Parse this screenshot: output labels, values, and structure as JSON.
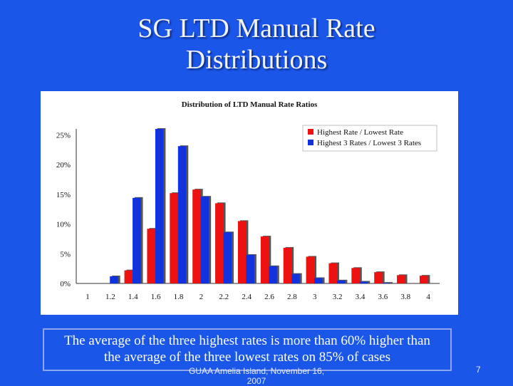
{
  "slide": {
    "title_line1": "SG LTD Manual Rate",
    "title_line2": "Distributions",
    "caption_line1": "The average of the three highest rates is more than 60% higher than",
    "caption_line2": "the average of the three lowest rates on 85% of cases",
    "footer": "GUAA Amelia Island, November 16, 2007",
    "page_number": "7"
  },
  "colors": {
    "background": "#1a56e8",
    "series_red": "#ee1111",
    "series_blue": "#1133dd"
  },
  "chart_data": {
    "type": "bar",
    "title": "Distribution of LTD Manual Rate Ratios",
    "categories": [
      "1",
      "1.2",
      "1.4",
      "1.6",
      "1.8",
      "2",
      "2.2",
      "2.4",
      "2.6",
      "2.8",
      "3",
      "3.2",
      "3.4",
      "3.6",
      "3.8",
      "4"
    ],
    "series": [
      {
        "name": "Highest Rate / Lowest Rate",
        "color": "#ee1111",
        "values": [
          0,
          0,
          2.2,
          9.2,
          15.2,
          15.8,
          13.5,
          10.5,
          7.9,
          6.0,
          4.5,
          3.4,
          2.6,
          1.9,
          1.4,
          1.3
        ]
      },
      {
        "name": "Highest 3 Rates / Lowest 3 Rates",
        "color": "#1133dd",
        "values": [
          0,
          1.2,
          14.4,
          26.0,
          23.1,
          14.6,
          8.6,
          4.8,
          2.9,
          1.6,
          0.9,
          0.5,
          0.3,
          0.1,
          0,
          0
        ]
      }
    ],
    "y_ticks": [
      "0%",
      "5%",
      "10%",
      "15%",
      "20%",
      "25%"
    ],
    "ylim": [
      0,
      26
    ],
    "legend_position": "top-right",
    "grid": false
  }
}
